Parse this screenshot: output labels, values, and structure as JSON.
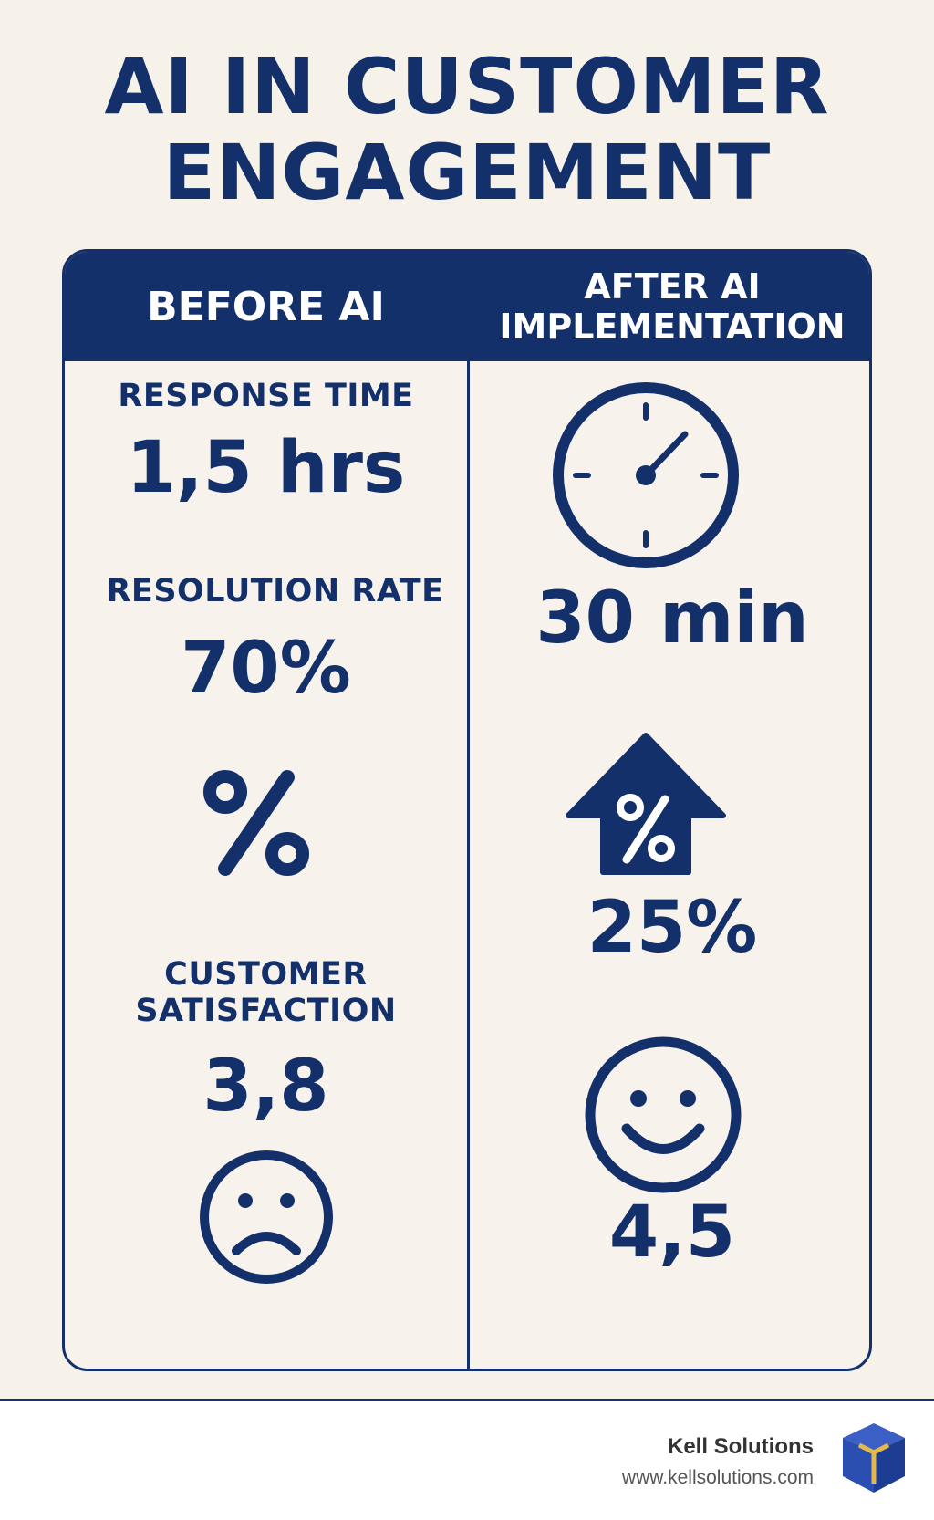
{
  "title": {
    "line1": "AI IN CUSTOMER",
    "line2": "ENGAGEMENT"
  },
  "before": {
    "header": "BEFORE AI",
    "response_time_label": "RESPONSE TIME",
    "response_time_value": "1,5 hrs",
    "resolution_rate_label": "RESOLUTION RATE",
    "resolution_rate_value": "70%",
    "satisfaction_label_line1": "CUSTOMER",
    "satisfaction_label_line2": "SATISFACTION",
    "satisfaction_value": "3,8"
  },
  "after": {
    "header_line1": "AFTER AI",
    "header_line2": "IMPLEMENTATION",
    "response_time_value": "30 min",
    "resolution_increase_value": "25%",
    "satisfaction_value": "4,5"
  },
  "icons": {
    "before_resolution": "percent-icon",
    "before_satisfaction": "sad-face-icon",
    "after_response": "clock-icon",
    "after_resolution": "percent-up-arrow-icon",
    "after_satisfaction": "smiley-face-icon",
    "brand": "cube-logo-icon"
  },
  "footer": {
    "brand": "Kell Solutions",
    "url": "www.kellsolutions.com"
  },
  "colors": {
    "primary": "#13306b",
    "background": "#f6f2ea",
    "logo_blue": "#2a4fb0",
    "logo_gold": "#e6b84a"
  }
}
